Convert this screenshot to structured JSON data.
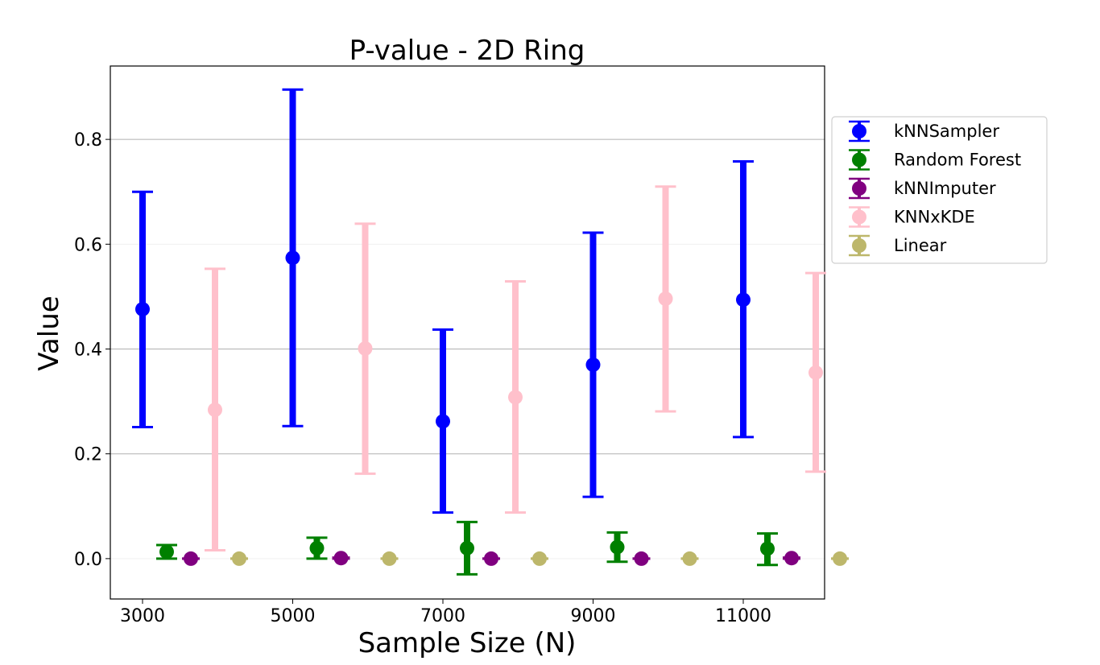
{
  "chart_data": {
    "type": "scatter",
    "title": "P-value - 2D Ring",
    "xlabel": "Sample Size (N)",
    "ylabel": "Value",
    "categories": [
      "3000",
      "5000",
      "7000",
      "9000",
      "11000"
    ],
    "ylim": [
      -0.077,
      0.94
    ],
    "yticks": [
      "0.0",
      "0.2",
      "0.4",
      "0.6",
      "0.8"
    ],
    "ytick_values": [
      0.0,
      0.2,
      0.4,
      0.6,
      0.8
    ],
    "grid": "horizontal",
    "legend_position": "outside-right-top",
    "series": [
      {
        "name": "kNNSampler",
        "color": "#0000ff",
        "values": [
          0.476,
          0.574,
          0.262,
          0.37,
          0.494
        ],
        "err_low": [
          0.251,
          0.253,
          0.088,
          0.118,
          0.232
        ],
        "err_high": [
          0.7,
          0.895,
          0.437,
          0.622,
          0.758
        ]
      },
      {
        "name": "Random Forest",
        "color": "#008000",
        "values": [
          0.013,
          0.02,
          0.02,
          0.022,
          0.019
        ],
        "err_low": [
          0.0,
          0.0,
          -0.03,
          -0.006,
          -0.012
        ],
        "err_high": [
          0.026,
          0.04,
          0.07,
          0.05,
          0.048
        ]
      },
      {
        "name": "kNNImputer",
        "color": "#800080",
        "values": [
          0.0,
          0.001,
          0.0,
          0.0,
          0.001
        ],
        "err_low": [
          0.0,
          0.0,
          0.0,
          0.0,
          0.0
        ],
        "err_high": [
          0.0,
          0.002,
          0.0,
          0.0,
          0.002
        ]
      },
      {
        "name": "KNNxKDE",
        "color": "#ffc0cb",
        "values": [
          0.284,
          0.401,
          0.308,
          0.496,
          0.355
        ],
        "err_low": [
          0.016,
          0.162,
          0.088,
          0.281,
          0.166
        ],
        "err_high": [
          0.553,
          0.639,
          0.529,
          0.71,
          0.545
        ]
      },
      {
        "name": "Linear",
        "color": "#bdb76b",
        "values": [
          0.0,
          0.0,
          0.0,
          0.0,
          0.0
        ],
        "err_low": [
          0.0,
          0.0,
          0.0,
          0.0,
          0.0
        ],
        "err_high": [
          0.0,
          0.0,
          0.0,
          0.0,
          0.0
        ]
      }
    ]
  }
}
